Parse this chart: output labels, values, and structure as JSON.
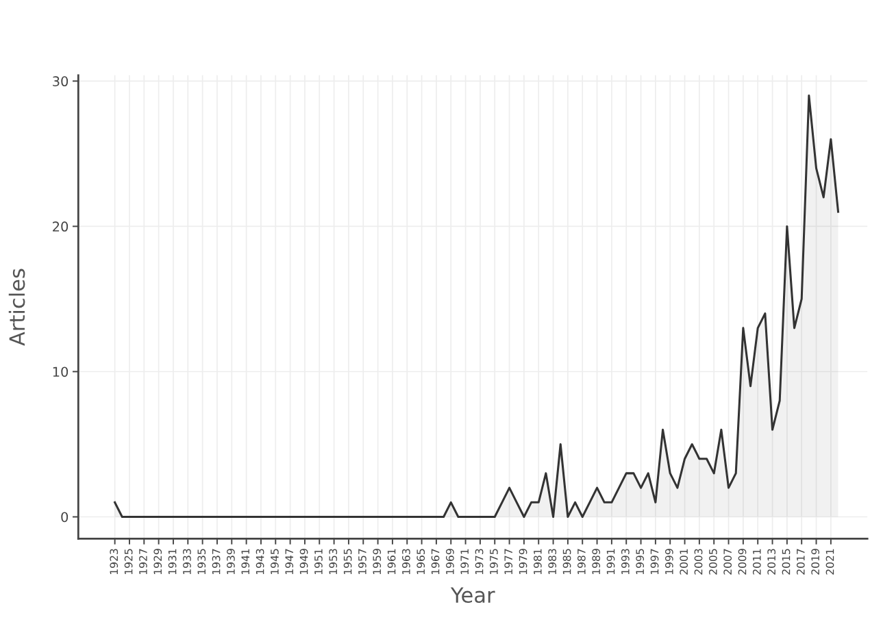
{
  "chart_data": {
    "type": "area",
    "xlabel": "Year",
    "ylabel": "Articles",
    "x": [
      1923,
      1924,
      1925,
      1926,
      1927,
      1928,
      1929,
      1930,
      1931,
      1932,
      1933,
      1934,
      1935,
      1936,
      1937,
      1938,
      1939,
      1940,
      1941,
      1942,
      1943,
      1944,
      1945,
      1946,
      1947,
      1948,
      1949,
      1950,
      1951,
      1952,
      1953,
      1954,
      1955,
      1956,
      1957,
      1958,
      1959,
      1960,
      1961,
      1962,
      1963,
      1964,
      1965,
      1966,
      1967,
      1968,
      1969,
      1970,
      1971,
      1972,
      1973,
      1974,
      1975,
      1976,
      1977,
      1978,
      1979,
      1980,
      1981,
      1982,
      1983,
      1984,
      1985,
      1986,
      1987,
      1988,
      1989,
      1990,
      1991,
      1992,
      1993,
      1994,
      1995,
      1996,
      1997,
      1998,
      1999,
      2000,
      2001,
      2002,
      2003,
      2004,
      2005,
      2006,
      2007,
      2008,
      2009,
      2010,
      2011,
      2012,
      2013,
      2014,
      2015,
      2016,
      2017,
      2018,
      2019,
      2020,
      2021,
      2022
    ],
    "series": [
      {
        "color": "#333333",
        "values": [
          1,
          0,
          0,
          0,
          0,
          0,
          0,
          0,
          0,
          0,
          0,
          0,
          0,
          0,
          0,
          0,
          0,
          0,
          0,
          0,
          0,
          0,
          0,
          0,
          0,
          0,
          0,
          0,
          0,
          0,
          0,
          0,
          0,
          0,
          0,
          0,
          0,
          0,
          0,
          0,
          0,
          0,
          0,
          0,
          0,
          0,
          1,
          0,
          0,
          0,
          0,
          0,
          0,
          1,
          2,
          1,
          0,
          1,
          1,
          3,
          0,
          5,
          0,
          1,
          0,
          1,
          2,
          1,
          1,
          2,
          3,
          3,
          2,
          3,
          1,
          6,
          3,
          2,
          4,
          5,
          4,
          4,
          3,
          6,
          2,
          3,
          13,
          9,
          13,
          14,
          6,
          8,
          20,
          13,
          15,
          29,
          24,
          22,
          26,
          21
        ]
      }
    ],
    "xlim": [
      1918,
      2026
    ],
    "xticks": [
      1923,
      1925,
      1927,
      1929,
      1931,
      1933,
      1935,
      1937,
      1939,
      1941,
      1943,
      1945,
      1947,
      1949,
      1951,
      1953,
      1955,
      1957,
      1959,
      1961,
      1963,
      1965,
      1967,
      1969,
      1971,
      1973,
      1975,
      1977,
      1979,
      1981,
      1983,
      1985,
      1987,
      1989,
      1991,
      1993,
      1995,
      1997,
      1999,
      2001,
      2003,
      2005,
      2007,
      2009,
      2011,
      2013,
      2015,
      2017,
      2019,
      2021
    ],
    "ylim": [
      -1.5,
      30.4
    ],
    "yticks": [
      0,
      10,
      20,
      30
    ],
    "grid": true,
    "marker": "none",
    "line_style": "solid"
  }
}
